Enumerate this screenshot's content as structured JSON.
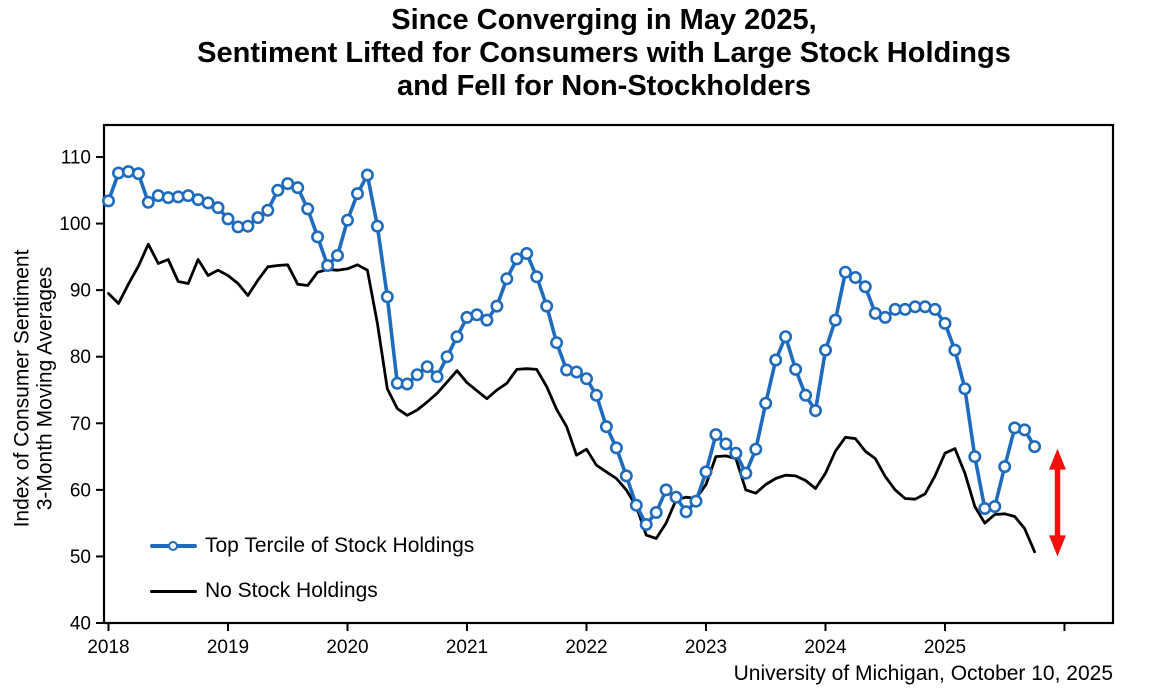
{
  "title": {
    "line1": "Since Converging in May 2025,",
    "line2": "Sentiment Lifted for Consumers with Large Stock Holdings",
    "line3": "and Fell for Non-Stockholders"
  },
  "source_note": "University of Michigan, October 10, 2025",
  "chart_data": {
    "type": "line",
    "ylabel_line1": "Index of Consumer Sentiment",
    "ylabel_line2": "3-Month Moving Averages",
    "ylim": [
      40,
      110
    ],
    "yticks": [
      40,
      50,
      60,
      70,
      80,
      90,
      100,
      110
    ],
    "x_year_labels": [
      "2018",
      "2019",
      "2020",
      "2021",
      "2022",
      "2023",
      "2024",
      "2025"
    ],
    "extra_right_tick": true,
    "x_start": "2018-01",
    "x_freq": "monthly",
    "grid": false,
    "legend_position": "inside-lower-left",
    "series": [
      {
        "name": "Top Tercile of Stock Holdings",
        "color": "#1f6cbe",
        "marker": "circle",
        "values": [
          103.4,
          107.6,
          107.8,
          107.5,
          103.2,
          104.2,
          103.9,
          104.0,
          104.2,
          103.6,
          103.1,
          102.4,
          100.7,
          99.5,
          99.6,
          100.9,
          102.0,
          105.0,
          106.0,
          105.4,
          102.2,
          98.0,
          93.7,
          95.2,
          100.5,
          104.5,
          107.3,
          99.6,
          89.0,
          76.0,
          75.9,
          77.3,
          78.5,
          77.0,
          80.0,
          83.0,
          85.9,
          86.3,
          85.5,
          87.6,
          91.7,
          94.7,
          95.5,
          92.0,
          87.6,
          82.1,
          78.0,
          77.7,
          76.7,
          74.2,
          69.5,
          66.3,
          62.1,
          57.7,
          54.8,
          56.6,
          60.0,
          58.9,
          56.7,
          58.3,
          62.7,
          68.3,
          66.9,
          65.5,
          62.5,
          66.1,
          73.0,
          79.5,
          83.0,
          78.1,
          74.2,
          71.9,
          81.0,
          85.5,
          92.7,
          91.9,
          90.5,
          86.5,
          85.9,
          87.1,
          87.1,
          87.5,
          87.5,
          87.1,
          85.0,
          81.0,
          75.2,
          65.0,
          57.2,
          57.5,
          63.5,
          69.3,
          69.0,
          66.5
        ]
      },
      {
        "name": "No Stock Holdings",
        "color": "#000000",
        "marker": "none",
        "values": [
          89.5,
          88.0,
          90.9,
          93.6,
          96.9,
          94.0,
          94.6,
          91.3,
          91.0,
          94.6,
          92.2,
          93.0,
          92.2,
          91.0,
          89.2,
          91.5,
          93.5,
          93.7,
          93.8,
          90.9,
          90.7,
          92.7,
          93.1,
          93.0,
          93.2,
          93.8,
          93.0,
          85.0,
          75.2,
          72.2,
          71.2,
          72.0,
          73.2,
          74.5,
          76.2,
          77.9,
          76.1,
          74.9,
          73.7,
          75.0,
          76.0,
          78.1,
          78.2,
          78.1,
          75.5,
          72.1,
          69.5,
          65.2,
          66.1,
          63.7,
          62.7,
          61.7,
          60.0,
          57.5,
          53.2,
          52.7,
          55.0,
          58.5,
          58.9,
          58.7,
          60.8,
          65.0,
          65.1,
          64.7,
          60.0,
          59.5,
          60.8,
          61.7,
          62.2,
          62.1,
          61.4,
          60.2,
          62.5,
          65.8,
          67.9,
          67.7,
          65.8,
          64.7,
          62.0,
          60.0,
          58.7,
          58.6,
          59.4,
          62.1,
          65.5,
          66.2,
          62.5,
          57.5,
          55.0,
          56.3,
          56.4,
          56.0,
          54.2,
          50.7
        ]
      }
    ],
    "annotation_arrow": {
      "color": "#f5100c",
      "month_index": 95.3,
      "value_top": 66.2,
      "value_bottom": 50.0,
      "style": "double-headed-vertical"
    }
  }
}
